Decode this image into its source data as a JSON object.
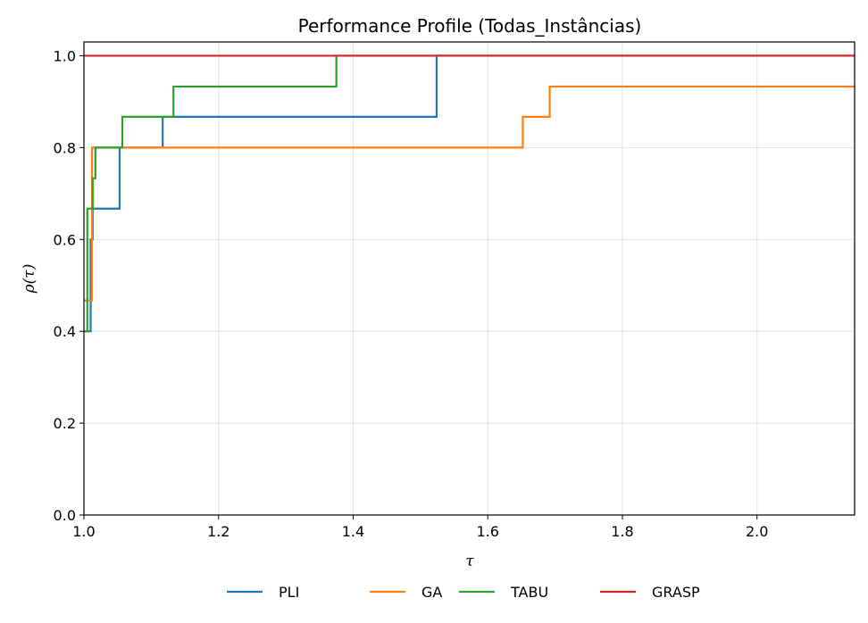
{
  "chart_data": {
    "type": "line",
    "step": "post",
    "title": "Performance Profile (Todas_Instâncias)",
    "xlabel": "τ",
    "ylabel": "ρ(τ)",
    "xlim": [
      1.0,
      2.145
    ],
    "ylim": [
      0.0,
      1.03
    ],
    "xticks": [
      "1.0",
      "1.2",
      "1.4",
      "1.6",
      "1.8",
      "2.0"
    ],
    "yticks": [
      "0.0",
      "0.2",
      "0.4",
      "0.6",
      "0.8",
      "1.0"
    ],
    "grid": true,
    "legend_position": "bottom-center",
    "series": [
      {
        "name": "PLI",
        "color": "#1f77b4",
        "x": [
          1.0,
          1.01,
          1.013,
          1.053,
          1.117,
          1.524,
          2.145
        ],
        "y": [
          0.4,
          0.6,
          0.667,
          0.8,
          0.867,
          1.0,
          1.0
        ]
      },
      {
        "name": "GA",
        "color": "#ff7f0e",
        "x": [
          1.0,
          1.012,
          1.052,
          1.652,
          1.692,
          2.145
        ],
        "y": [
          0.467,
          0.8,
          0.8,
          0.867,
          0.933,
          0.933
        ]
      },
      {
        "name": "TABU",
        "color": "#2ca02c",
        "x": [
          1.0,
          1.005,
          1.013,
          1.017,
          1.057,
          1.133,
          1.375,
          2.145
        ],
        "y": [
          0.4,
          0.667,
          0.733,
          0.8,
          0.867,
          0.933,
          1.0,
          1.0
        ]
      },
      {
        "name": "GRASP",
        "color": "#d62728",
        "x": [
          1.0,
          2.145
        ],
        "y": [
          1.0,
          1.0
        ]
      }
    ]
  }
}
